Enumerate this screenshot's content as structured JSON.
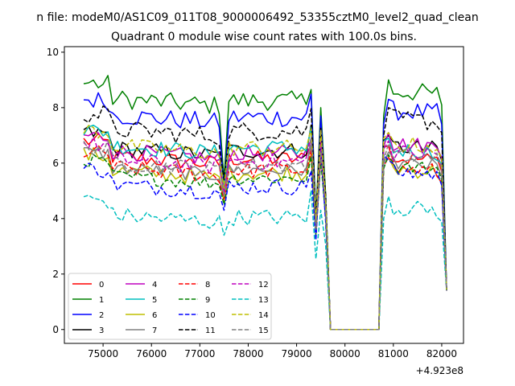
{
  "chart_data": {
    "type": "line",
    "suptitle": "n file: modeM0/AS1C09_011T08_9000006492_53355cztM0_level2_quad_clean",
    "title": "Quadrant 0 module wise count rates with 100.0s bins.",
    "xlabel": "",
    "ylabel": "",
    "x_offset_label": "+4.923e8",
    "xlim": [
      74200,
      82450
    ],
    "ylim": [
      -0.5,
      10.2
    ],
    "xticks": [
      75000,
      76000,
      77000,
      78000,
      79000,
      80000,
      81000,
      82000
    ],
    "yticks": [
      0,
      2,
      4,
      6,
      8,
      10
    ],
    "grid": false,
    "legend_position": "lower-left",
    "legend_columns": 4,
    "series": [
      {
        "name": "0",
        "color": "#ff0000",
        "dash": "solid",
        "base": 6.3,
        "amp": 0.3,
        "dip": 4.9,
        "peak": 6.9,
        "post": 6.2
      },
      {
        "name": "1",
        "color": "#008000",
        "dash": "solid",
        "base": 8.4,
        "amp": 0.35,
        "dip": 5.4,
        "peak": 8.0,
        "post": 8.6
      },
      {
        "name": "2",
        "color": "#0000ff",
        "dash": "solid",
        "base": 7.8,
        "amp": 0.35,
        "dip": 5.1,
        "peak": 7.7,
        "post": 7.9
      },
      {
        "name": "3",
        "color": "#000000",
        "dash": "solid",
        "base": 6.6,
        "amp": 0.3,
        "dip": 5.0,
        "peak": 7.1,
        "post": 6.6
      },
      {
        "name": "4",
        "color": "#bf00bf",
        "dash": "solid",
        "base": 6.5,
        "amp": 0.3,
        "dip": 5.0,
        "peak": 6.9,
        "post": 6.7
      },
      {
        "name": "5",
        "color": "#00bfbf",
        "dash": "solid",
        "base": 6.7,
        "amp": 0.3,
        "dip": 5.2,
        "peak": 7.1,
        "post": 6.5
      },
      {
        "name": "6",
        "color": "#bfbf00",
        "dash": "solid",
        "base": 5.8,
        "amp": 0.3,
        "dip": 4.6,
        "peak": 6.4,
        "post": 5.8
      },
      {
        "name": "7",
        "color": "#808080",
        "dash": "solid",
        "base": 5.9,
        "amp": 0.25,
        "dip": 4.8,
        "peak": 6.3,
        "post": 6.0
      },
      {
        "name": "8",
        "color": "#ff0000",
        "dash": "dashed",
        "base": 5.9,
        "amp": 0.3,
        "dip": 4.7,
        "peak": 6.2,
        "post": 5.8
      },
      {
        "name": "9",
        "color": "#008000",
        "dash": "dashed",
        "base": 5.6,
        "amp": 0.25,
        "dip": 4.5,
        "peak": 6.1,
        "post": 5.9
      },
      {
        "name": "10",
        "color": "#0000ff",
        "dash": "dashed",
        "base": 5.3,
        "amp": 0.3,
        "dip": 4.3,
        "peak": 6.6,
        "post": 5.7
      },
      {
        "name": "11",
        "color": "#000000",
        "dash": "dashed",
        "base": 7.3,
        "amp": 0.35,
        "dip": 5.4,
        "peak": 7.3,
        "post": 7.6
      },
      {
        "name": "12",
        "color": "#bf00bf",
        "dash": "dashed",
        "base": 6.2,
        "amp": 0.3,
        "dip": 4.9,
        "peak": 6.8,
        "post": 6.4
      },
      {
        "name": "13",
        "color": "#00bfbf",
        "dash": "dashed",
        "base": 4.2,
        "amp": 0.3,
        "dip": 3.4,
        "peak": 4.3,
        "post": 4.4
      },
      {
        "name": "14",
        "color": "#bfbf00",
        "dash": "dashed",
        "base": 6.7,
        "amp": 0.3,
        "dip": 5.1,
        "peak": 7.2,
        "post": 6.7
      },
      {
        "name": "15",
        "color": "#808080",
        "dash": "dashed",
        "base": 6.1,
        "amp": 0.3,
        "dip": 4.8,
        "peak": 6.4,
        "post": 6.3
      }
    ]
  }
}
